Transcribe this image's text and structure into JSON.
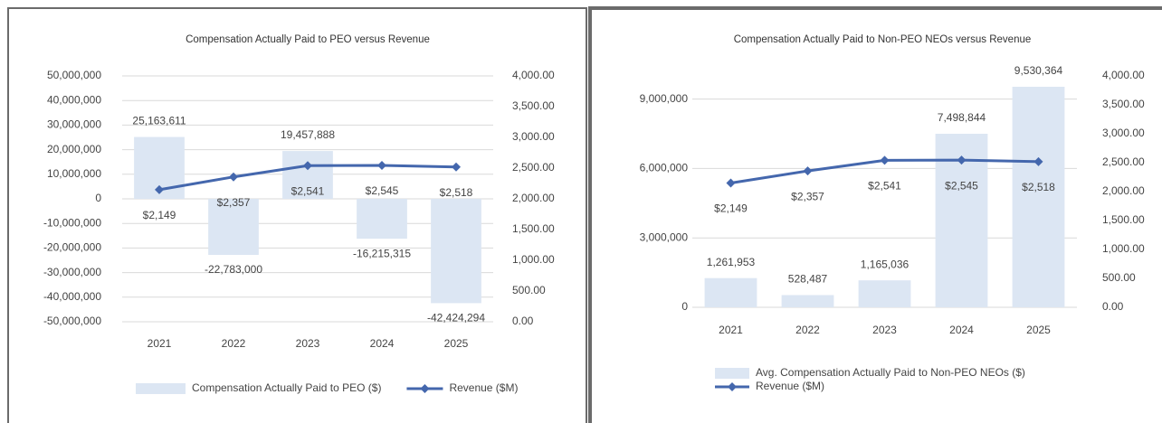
{
  "chart_data": [
    {
      "type": "combo",
      "title": "Compensation Actually Paid to PEO versus Revenue",
      "categories": [
        "2021",
        "2022",
        "2023",
        "2024",
        "2025"
      ],
      "series": [
        {
          "name": "Compensation Actually Paid to PEO ($)",
          "type": "bar",
          "color": "#dce6f3",
          "values": [
            25163611,
            -22783000,
            19457888,
            -16215315,
            -42424294
          ],
          "value_labels": [
            "25,163,611",
            "-22,783,000",
            "19,457,888",
            "-16,215,315",
            "-42,424,294"
          ]
        },
        {
          "name": "Revenue ($M)",
          "type": "line",
          "axis": "y2",
          "color": "#4467ad",
          "values": [
            2149,
            2357,
            2541,
            2545,
            2518
          ],
          "value_labels": [
            "$2,149",
            "$2,357",
            "$2,541",
            "$2,545",
            "$2,518"
          ]
        }
      ],
      "ylim": [
        -50000000,
        50000000
      ],
      "yticks": [
        {
          "value": -50000000,
          "label": "-50,000,000"
        },
        {
          "value": -40000000,
          "label": "-40,000,000"
        },
        {
          "value": -30000000,
          "label": "-30,000,000"
        },
        {
          "value": -20000000,
          "label": "-20,000,000"
        },
        {
          "value": -10000000,
          "label": "-10,000,000"
        },
        0,
        {
          "value": 10000000,
          "label": "10,000,000"
        },
        {
          "value": 20000000,
          "label": "20,000,000"
        },
        {
          "value": 30000000,
          "label": "30,000,000"
        },
        {
          "value": 40000000,
          "label": "40,000,000"
        },
        {
          "value": 50000000,
          "label": "50,000,000"
        }
      ],
      "y2lim": [
        0,
        4000
      ],
      "y2ticks": [
        {
          "value": 0,
          "label": "0.00"
        },
        {
          "value": 500,
          "label": "500.00"
        },
        {
          "value": 1000,
          "label": "1,000.00"
        },
        {
          "value": 1500,
          "label": "1,500.00"
        },
        {
          "value": 2000,
          "label": "2,000.00"
        },
        {
          "value": 2500,
          "label": "2,500.00"
        },
        {
          "value": 3000,
          "label": "3,000.00"
        },
        {
          "value": 3500,
          "label": "3,500.00"
        },
        {
          "value": 4000,
          "label": "4,000.00"
        }
      ],
      "grid": true,
      "legend": "bottom"
    },
    {
      "type": "combo",
      "title": "Compensation Actually Paid to Non-PEO NEOs versus Revenue",
      "categories": [
        "2021",
        "2022",
        "2023",
        "2024",
        "2025"
      ],
      "series": [
        {
          "name": "Avg. Compensation Actually Paid to Non-PEO NEOs ($)",
          "type": "bar",
          "color": "#dce6f3",
          "values": [
            1261953,
            528487,
            1165036,
            7498844,
            9530364
          ],
          "value_labels": [
            "1,261,953",
            "528,487",
            "1,165,036",
            "7,498,844",
            "9,530,364"
          ]
        },
        {
          "name": "Revenue ($M)",
          "type": "line",
          "axis": "y2",
          "color": "#4467ad",
          "values": [
            2149,
            2357,
            2541,
            2545,
            2518
          ],
          "value_labels": [
            "$2,149",
            "$2,357",
            "$2,541",
            "$2,545",
            "$2,518"
          ]
        }
      ],
      "ylim": [
        0,
        10000000
      ],
      "yticks": [
        0,
        {
          "value": 3000000,
          "label": "3,000,000"
        },
        {
          "value": 6000000,
          "label": "6,000,000"
        },
        {
          "value": 9000000,
          "label": "9,000,000"
        }
      ],
      "y2lim": [
        0,
        4000
      ],
      "y2ticks": [
        {
          "value": 0,
          "label": "0.00"
        },
        {
          "value": 500,
          "label": "500.00"
        },
        {
          "value": 1000,
          "label": "1,000.00"
        },
        {
          "value": 1500,
          "label": "1,500.00"
        },
        {
          "value": 2000,
          "label": "2,000.00"
        },
        {
          "value": 2500,
          "label": "2,500.00"
        },
        {
          "value": 3000,
          "label": "3,000.00"
        },
        {
          "value": 3500,
          "label": "3,500.00"
        },
        {
          "value": 4000,
          "label": "4,000.00"
        }
      ],
      "grid": true,
      "legend": "bottom"
    }
  ]
}
